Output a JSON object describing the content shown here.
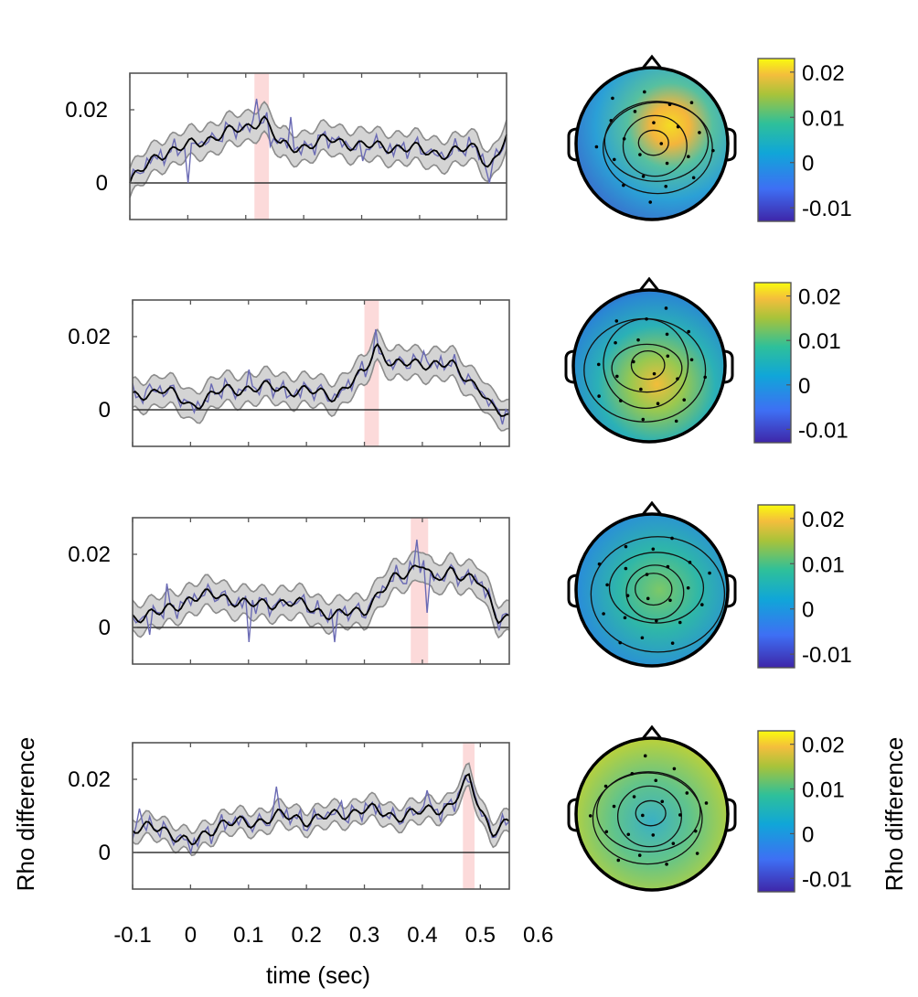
{
  "chart_data": {
    "type": "line",
    "xlabel": "time (sec)",
    "ylabel": "Rho difference",
    "xlim": [
      -0.1,
      0.55
    ],
    "ylim": [
      -0.01,
      0.03
    ],
    "x_ticks": [
      -0.1,
      0,
      0.1,
      0.2,
      0.3,
      0.4,
      0.5,
      0.6
    ],
    "x_tick_labels": [
      "-0.1",
      "0",
      "0.1",
      "0.2",
      "0.3",
      "0.4",
      "0.5",
      "0.6"
    ],
    "y_ticks": [
      0,
      0.02
    ],
    "y_tick_labels": [
      "0",
      "0.02"
    ],
    "colorbar": {
      "label": "Rho difference",
      "range": [
        -0.013,
        0.023
      ],
      "tick_labels": [
        "0.02",
        "0.01",
        "0",
        "-0.01"
      ],
      "tick_values": [
        0.02,
        0.01,
        0,
        -0.01
      ]
    },
    "colors": {
      "mean_line": "#000000",
      "raw_line": "#6a6ab4",
      "ci_fill": "#d4d4d4",
      "ci_edge": "#8c8c8c",
      "highlight": "#fcdada",
      "zero_line": "#333333"
    },
    "panels": [
      {
        "highlight_window": [
          0.115,
          0.14
        ],
        "x": [
          -0.1,
          -0.05,
          0,
          0.05,
          0.1,
          0.13,
          0.16,
          0.2,
          0.25,
          0.3,
          0.35,
          0.4,
          0.45,
          0.5,
          0.52,
          0.55
        ],
        "mean": [
          0.0,
          0.008,
          0.01,
          0.013,
          0.015,
          0.018,
          0.01,
          0.01,
          0.012,
          0.01,
          0.01,
          0.009,
          0.008,
          0.01,
          0.004,
          0.012
        ],
        "ci_half": 0.004,
        "raw_spikes": [
          [
            0.0,
            0.0
          ],
          [
            0.12,
            0.023
          ],
          [
            0.14,
            0.01
          ],
          [
            0.18,
            0.018
          ],
          [
            0.3,
            0.006
          ],
          [
            0.45,
            0.007
          ],
          [
            0.52,
            0.0
          ]
        ]
      },
      {
        "highlight_window": [
          0.3,
          0.325
        ],
        "x": [
          -0.1,
          -0.05,
          0,
          0.05,
          0.1,
          0.15,
          0.2,
          0.25,
          0.3,
          0.32,
          0.35,
          0.4,
          0.45,
          0.5,
          0.52,
          0.55
        ],
        "mean": [
          0.003,
          0.006,
          0.001,
          0.005,
          0.006,
          0.006,
          0.005,
          0.004,
          0.01,
          0.018,
          0.012,
          0.013,
          0.012,
          0.006,
          0.0,
          -0.002
        ],
        "ci_half": 0.004,
        "raw_spikes": [
          [
            -0.07,
            0.007
          ],
          [
            0.1,
            0.011
          ],
          [
            0.17,
            0.004
          ],
          [
            0.32,
            0.022
          ],
          [
            0.4,
            0.016
          ]
        ]
      },
      {
        "highlight_window": [
          0.38,
          0.41
        ],
        "x": [
          -0.1,
          -0.05,
          0,
          0.05,
          0.1,
          0.15,
          0.2,
          0.25,
          0.3,
          0.35,
          0.4,
          0.42,
          0.45,
          0.5,
          0.53,
          0.55
        ],
        "mean": [
          0.003,
          0.004,
          0.008,
          0.009,
          0.006,
          0.007,
          0.006,
          0.003,
          0.005,
          0.013,
          0.018,
          0.012,
          0.016,
          0.012,
          0.003,
          0.003
        ],
        "ci_half": 0.004,
        "raw_spikes": [
          [
            -0.07,
            -0.002
          ],
          [
            -0.04,
            0.012
          ],
          [
            0.1,
            -0.004
          ],
          [
            0.25,
            -0.004
          ],
          [
            0.37,
            0.012
          ],
          [
            0.39,
            0.024
          ],
          [
            0.41,
            0.004
          ]
        ]
      },
      {
        "highlight_window": [
          0.47,
          0.49
        ],
        "x": [
          -0.1,
          -0.05,
          0,
          0.05,
          0.1,
          0.15,
          0.2,
          0.25,
          0.3,
          0.35,
          0.4,
          0.45,
          0.48,
          0.5,
          0.52,
          0.55
        ],
        "mean": [
          0.006,
          0.007,
          0.002,
          0.008,
          0.008,
          0.01,
          0.009,
          0.01,
          0.012,
          0.01,
          0.011,
          0.013,
          0.02,
          0.012,
          0.006,
          0.008
        ],
        "ci_half": 0.003,
        "raw_spikes": [
          [
            -0.09,
            0.012
          ],
          [
            0.0,
            0.0
          ],
          [
            0.15,
            0.018
          ],
          [
            0.2,
            0.006
          ],
          [
            0.26,
            0.014
          ],
          [
            0.41,
            0.017
          ]
        ]
      }
    ]
  }
}
